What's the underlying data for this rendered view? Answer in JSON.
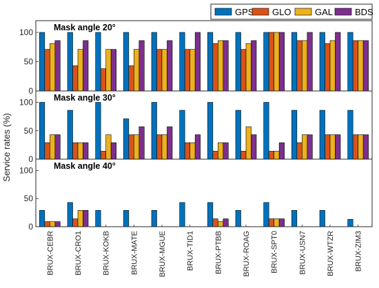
{
  "chart_data": {
    "type": "bar",
    "ylabel": "Service rates (%)",
    "ylim": [
      0,
      120
    ],
    "yticks": [
      0,
      50,
      100
    ],
    "legend_position": "top-right",
    "categories": [
      "BRUX-CEBR",
      "BRUX-CRO1",
      "BRUX-KOKB",
      "BRUX-MATE",
      "BRUX-MGUE",
      "BRUX-TID1",
      "BRUX-PTBB",
      "BRUX-ROAG",
      "BRUX-SPT0",
      "BRUX-USN7",
      "BRUX-WTZR",
      "BRUX-ZIM3"
    ],
    "series_meta": [
      {
        "name": "GPS",
        "color": "#0072BD"
      },
      {
        "name": "GLO",
        "color": "#D95319"
      },
      {
        "name": "GAL",
        "color": "#EDB120"
      },
      {
        "name": "BDS",
        "color": "#7E2F8E"
      }
    ],
    "panels": [
      {
        "title": "Mask angle 20°",
        "series": [
          {
            "name": "GPS",
            "values": [
              100,
              100,
              100,
              100,
              100,
              100,
              100,
              100,
              100,
              100,
              100,
              100
            ]
          },
          {
            "name": "GLO",
            "values": [
              71,
              43,
              38,
              43,
              71,
              71,
              81,
              71,
              100,
              86,
              81,
              86
            ]
          },
          {
            "name": "GAL",
            "values": [
              81,
              71,
              71,
              71,
              71,
              71,
              86,
              81,
              100,
              86,
              86,
              86
            ]
          },
          {
            "name": "BDS",
            "values": [
              86,
              86,
              71,
              86,
              86,
              100,
              86,
              86,
              100,
              100,
              100,
              86
            ]
          }
        ]
      },
      {
        "title": "Mask angle 30°",
        "series": [
          {
            "name": "GPS",
            "values": [
              100,
              86,
              100,
              71,
              100,
              86,
              100,
              86,
              100,
              86,
              86,
              86
            ]
          },
          {
            "name": "GLO",
            "values": [
              29,
              29,
              14,
              43,
              43,
              29,
              14,
              14,
              14,
              29,
              43,
              43
            ]
          },
          {
            "name": "GAL",
            "values": [
              43,
              29,
              43,
              43,
              43,
              29,
              29,
              57,
              14,
              43,
              43,
              43
            ]
          },
          {
            "name": "BDS",
            "values": [
              43,
              29,
              29,
              57,
              57,
              43,
              29,
              43,
              29,
              43,
              43,
              43
            ]
          }
        ]
      },
      {
        "title": "Mask angle 40°",
        "series": [
          {
            "name": "GPS",
            "values": [
              29,
              43,
              29,
              29,
              29,
              43,
              43,
              29,
              43,
              29,
              29,
              13
            ]
          },
          {
            "name": "GLO",
            "values": [
              9,
              14,
              0,
              0,
              0,
              0,
              14,
              0,
              14,
              0,
              0,
              0
            ]
          },
          {
            "name": "GAL",
            "values": [
              9,
              29,
              0,
              0,
              0,
              0,
              9,
              0,
              14,
              0,
              0,
              0
            ]
          },
          {
            "name": "BDS",
            "values": [
              9,
              29,
              0,
              0,
              0,
              0,
              14,
              0,
              14,
              0,
              0,
              0
            ]
          }
        ]
      }
    ]
  }
}
